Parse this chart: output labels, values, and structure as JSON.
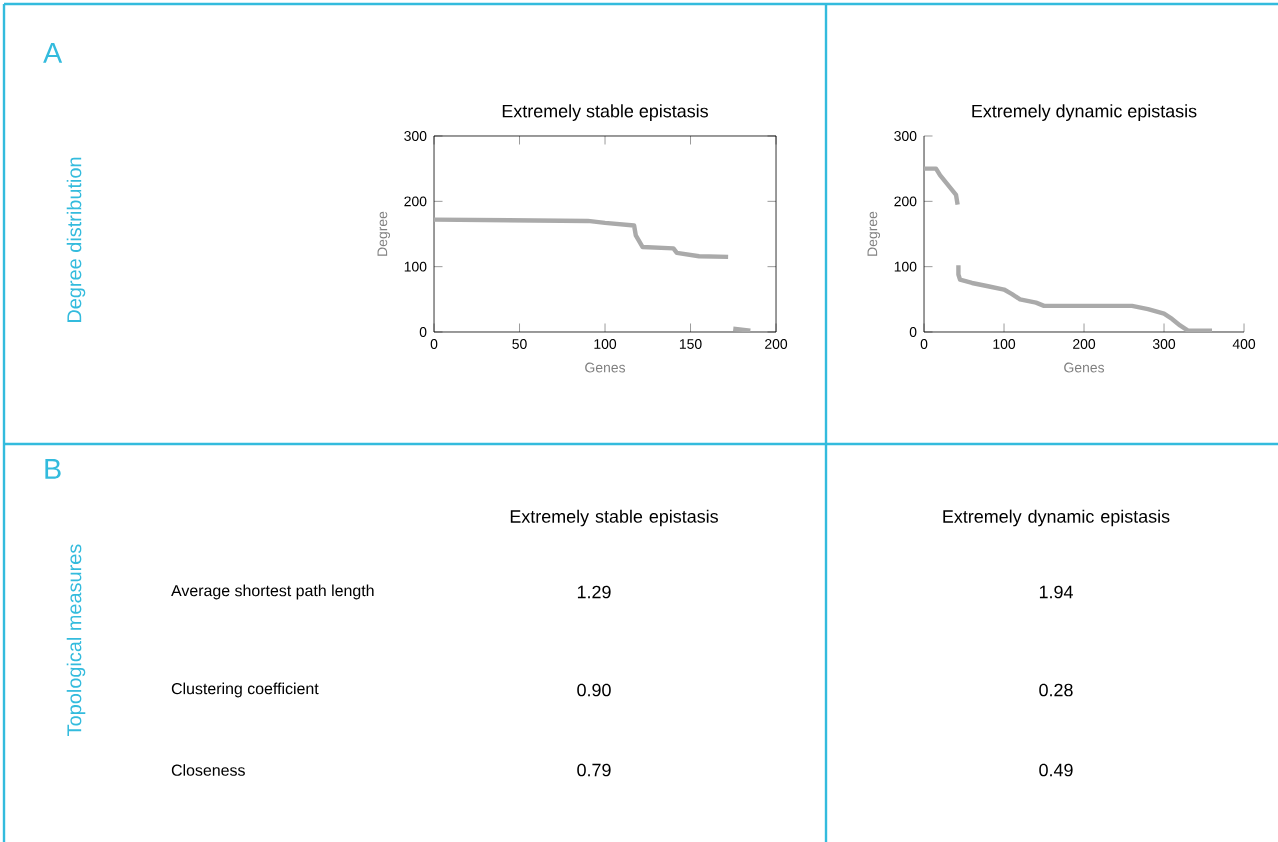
{
  "chart_data": [
    {
      "type": "line",
      "title": "Extremely stable epistasis",
      "xlabel": "Genes",
      "ylabel": "Degree",
      "series": [
        {
          "color": "#aaaaaa",
          "x": [
            0,
            90,
            100,
            117,
            118,
            122,
            140,
            142,
            155,
            172
          ],
          "values": [
            172,
            170,
            167,
            163,
            148,
            130,
            128,
            121,
            116,
            115
          ]
        },
        {
          "color": "#aaaaaa",
          "x": [
            175,
            185
          ],
          "values": [
            5,
            2
          ]
        }
      ],
      "xlim": [
        0,
        200
      ],
      "ylim": [
        0,
        300
      ],
      "xticks": [
        0,
        50,
        100,
        150,
        200
      ],
      "yticks": [
        0,
        100,
        200,
        300
      ],
      "annotations": [
        "A",
        "Degree distribution"
      ]
    },
    {
      "type": "line",
      "title": "Extremely dynamic epistasis",
      "xlabel": "Genes",
      "ylabel": "Degree",
      "series": [
        {
          "color": "#aaaaaa",
          "x": [
            0,
            15,
            20,
            30,
            40,
            42
          ],
          "values": [
            250,
            250,
            240,
            225,
            210,
            195
          ]
        },
        {
          "color": "#aaaaaa",
          "x": [
            43,
            43,
            45,
            60,
            80,
            100,
            110,
            120,
            140,
            150,
            260,
            280,
            300,
            310,
            320,
            330,
            360
          ],
          "values": [
            102,
            88,
            80,
            75,
            70,
            65,
            58,
            50,
            45,
            40,
            40,
            35,
            28,
            20,
            10,
            2,
            2
          ]
        }
      ],
      "xlim": [
        0,
        400
      ],
      "ylim": [
        0,
        300
      ],
      "xticks": [
        0,
        100,
        200,
        300,
        400
      ],
      "yticks": [
        0,
        100,
        200,
        300
      ]
    },
    {
      "type": "other",
      "categories": [
        "Extremely stable epistasis",
        "Extremely dynamic epistasis"
      ],
      "y_categories": [
        "Average shortest path length",
        "Clustering coefficient",
        "Closeness"
      ],
      "cell_labels": [
        [
          "1.29",
          "1.94"
        ],
        [
          "0.90",
          "0.28"
        ],
        [
          "0.79",
          "0.49"
        ]
      ],
      "annotations": [
        "B",
        "Topological measures"
      ]
    }
  ]
}
